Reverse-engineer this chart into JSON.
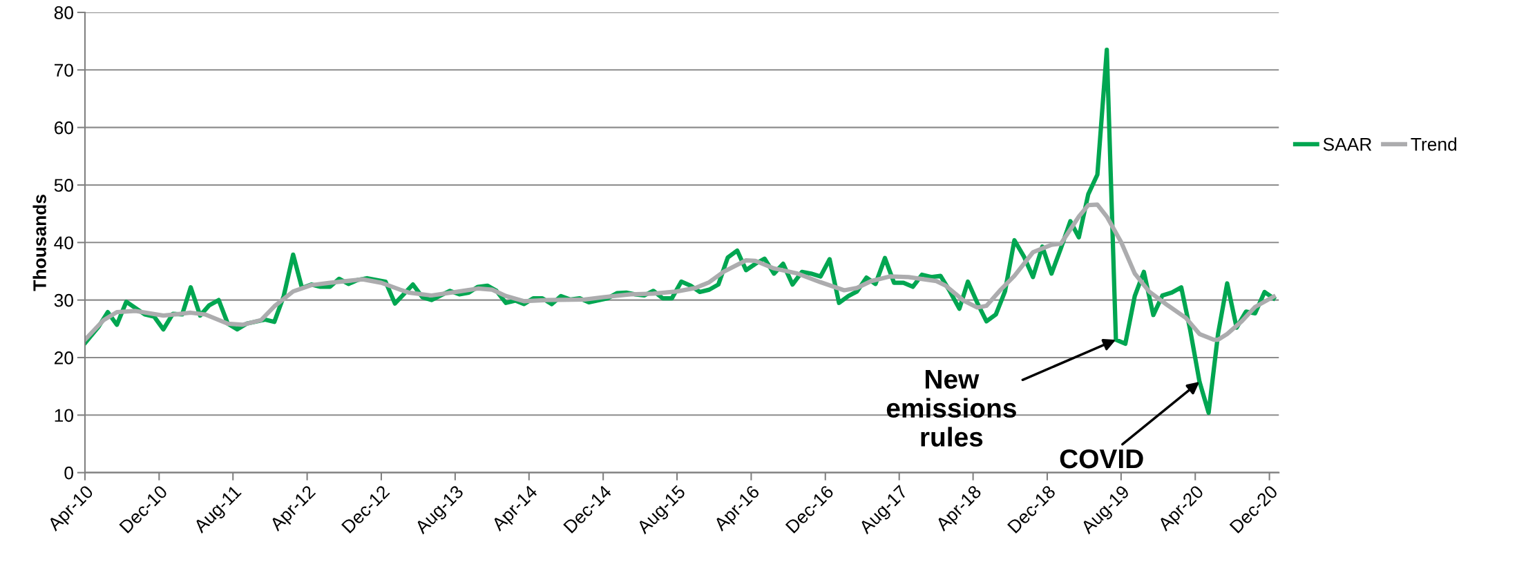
{
  "chart_data": {
    "type": "line",
    "ylabel": "Thousands",
    "xlim": [
      "2010-04-01",
      "2021-01-01"
    ],
    "xticks": [
      {
        "value": "2010-04-01",
        "label": "Apr-10"
      },
      {
        "value": "2010-12-01",
        "label": "Dec-10"
      },
      {
        "value": "2011-08-01",
        "label": "Aug-11"
      },
      {
        "value": "2012-04-01",
        "label": "Apr-12"
      },
      {
        "value": "2012-12-01",
        "label": "Dec-12"
      },
      {
        "value": "2013-08-01",
        "label": "Aug-13"
      },
      {
        "value": "2014-04-01",
        "label": "Apr-14"
      },
      {
        "value": "2014-12-01",
        "label": "Dec-14"
      },
      {
        "value": "2015-08-01",
        "label": "Aug-15"
      },
      {
        "value": "2016-04-01",
        "label": "Apr-16"
      },
      {
        "value": "2016-12-01",
        "label": "Dec-16"
      },
      {
        "value": "2017-08-01",
        "label": "Aug-17"
      },
      {
        "value": "2018-04-01",
        "label": "Apr-18"
      },
      {
        "value": "2018-12-01",
        "label": "Dec-18"
      },
      {
        "value": "2019-08-01",
        "label": "Aug-19"
      },
      {
        "value": "2020-04-01",
        "label": "Apr-20"
      },
      {
        "value": "2020-12-01",
        "label": "Dec-20"
      }
    ],
    "ylim": [
      0,
      80
    ],
    "yticks": [
      0,
      10,
      20,
      30,
      40,
      50,
      60,
      70,
      80
    ],
    "grid": "y",
    "legend": "right",
    "marker": "none",
    "line_style": "solid",
    "series": [
      {
        "name": "SAAR",
        "color": "#00a651",
        "x": [
          "2010-04-01",
          "2010-05-15",
          "2010-06-15",
          "2010-07-15",
          "2010-08-15",
          "2010-10-15",
          "2010-11-15",
          "2010-12-15",
          "2011-01-15",
          "2011-02-15",
          "2011-03-15",
          "2011-04-15",
          "2011-05-15",
          "2011-06-15",
          "2011-07-15",
          "2011-08-15",
          "2011-09-15",
          "2011-11-15",
          "2011-12-15",
          "2012-01-15",
          "2012-02-15",
          "2012-03-15",
          "2012-04-15",
          "2012-05-15",
          "2012-06-15",
          "2012-07-15",
          "2012-08-15",
          "2012-09-15",
          "2012-10-15",
          "2012-12-15",
          "2013-01-15",
          "2013-03-15",
          "2013-04-15",
          "2013-05-15",
          "2013-07-15",
          "2013-08-15",
          "2013-09-15",
          "2013-10-15",
          "2013-11-15",
          "2013-12-15",
          "2014-01-15",
          "2014-02-15",
          "2014-03-15",
          "2014-04-15",
          "2014-05-15",
          "2014-06-15",
          "2014-07-15",
          "2014-08-15",
          "2014-09-15",
          "2014-10-15",
          "2014-12-15",
          "2015-01-15",
          "2015-02-15",
          "2015-03-15",
          "2015-04-15",
          "2015-05-15",
          "2015-06-15",
          "2015-07-15",
          "2015-08-15",
          "2015-09-15",
          "2015-10-15",
          "2015-11-15",
          "2015-12-15",
          "2016-01-15",
          "2016-02-15",
          "2016-03-15",
          "2016-04-15",
          "2016-05-15",
          "2016-06-15",
          "2016-07-15",
          "2016-08-15",
          "2016-09-15",
          "2016-10-15",
          "2016-11-15",
          "2016-12-15",
          "2017-01-15",
          "2017-02-15",
          "2017-03-15",
          "2017-04-15",
          "2017-05-15",
          "2017-06-15",
          "2017-07-15",
          "2017-08-15",
          "2017-09-15",
          "2017-10-15",
          "2017-11-15",
          "2017-12-15",
          "2018-01-15",
          "2018-02-15",
          "2018-03-15",
          "2018-04-15",
          "2018-05-15",
          "2018-06-15",
          "2018-07-15",
          "2018-08-15",
          "2018-09-15",
          "2018-10-15",
          "2018-11-15",
          "2018-12-15",
          "2019-01-15",
          "2019-02-15",
          "2019-03-15",
          "2019-04-15",
          "2019-05-15",
          "2019-06-15",
          "2019-07-15",
          "2019-08-15",
          "2019-09-15",
          "2019-10-15",
          "2019-11-15",
          "2019-12-15",
          "2020-01-15",
          "2020-02-15",
          "2020-03-15",
          "2020-04-15",
          "2020-05-15",
          "2020-06-15",
          "2020-07-15",
          "2020-08-15",
          "2020-09-15",
          "2020-10-15",
          "2020-11-15",
          "2020-12-15"
        ],
        "values": [
          22.5,
          25.3,
          27.9,
          25.7,
          29.7,
          27.5,
          27.1,
          24.9,
          27.6,
          27.5,
          32.2,
          27.3,
          29.1,
          30.0,
          25.9,
          24.9,
          25.9,
          26.6,
          26.2,
          30.7,
          37.9,
          32.1,
          32.7,
          32.3,
          32.3,
          33.7,
          32.8,
          33.5,
          33.8,
          33.2,
          29.4,
          32.7,
          30.5,
          30.0,
          31.6,
          31.0,
          31.3,
          32.3,
          32.5,
          31.6,
          29.5,
          29.9,
          29.3,
          30.3,
          30.3,
          29.3,
          30.7,
          30.1,
          30.3,
          29.6,
          30.3,
          31.2,
          31.3,
          31.0,
          30.8,
          31.6,
          30.3,
          30.3,
          33.2,
          32.5,
          31.4,
          31.8,
          32.7,
          37.4,
          38.6,
          35.2,
          36.3,
          37.2,
          34.6,
          36.3,
          32.7,
          34.9,
          34.6,
          34.1,
          37.1,
          29.5,
          30.7,
          31.5,
          33.9,
          32.8,
          37.3,
          33.0,
          33.0,
          32.3,
          34.4,
          34.0,
          34.2,
          31.5,
          28.5,
          33.2,
          29.5,
          26.3,
          27.5,
          31.5,
          40.4,
          37.6,
          34.0,
          39.3,
          34.6,
          39.0,
          43.7,
          40.9,
          48.4,
          51.8,
          73.5,
          23.1,
          22.4,
          30.7,
          34.9,
          27.4,
          30.8,
          31.3,
          32.2,
          24.9,
          15.8,
          10.4,
          24.1,
          32.9,
          25.2,
          28.0,
          27.7,
          31.4,
          30.3
        ]
      },
      {
        "name": "Trend",
        "color": "#acacae",
        "x": [
          "2010-04-01",
          "2010-06-01",
          "2010-07-15",
          "2010-09-15",
          "2010-12-15",
          "2011-03-15",
          "2011-05-01",
          "2011-07-15",
          "2011-09-01",
          "2011-11-01",
          "2011-12-15",
          "2012-02-15",
          "2012-04-15",
          "2012-06-15",
          "2012-10-01",
          "2012-12-01",
          "2013-02-01",
          "2013-03-01",
          "2013-05-15",
          "2013-08-15",
          "2013-10-15",
          "2013-12-01",
          "2014-01-15",
          "2014-03-15",
          "2014-06-01",
          "2014-10-01",
          "2014-12-01",
          "2015-03-01",
          "2015-05-15",
          "2015-08-01",
          "2015-10-01",
          "2015-11-15",
          "2016-01-01",
          "2016-03-15",
          "2016-04-15",
          "2016-06-15",
          "2016-09-01",
          "2016-11-15",
          "2017-02-01",
          "2017-03-15",
          "2017-05-01",
          "2017-07-01",
          "2017-09-01",
          "2017-12-01",
          "2018-01-01",
          "2018-03-01",
          "2018-04-15",
          "2018-05-15",
          "2018-07-01",
          "2018-08-15",
          "2018-10-15",
          "2018-12-15",
          "2019-01-15",
          "2019-03-15",
          "2019-04-15",
          "2019-05-15",
          "2019-06-15",
          "2019-08-01",
          "2019-09-15",
          "2019-11-01",
          "2020-01-01",
          "2020-03-01",
          "2020-04-15",
          "2020-06-01",
          "2020-06-15",
          "2020-07-15",
          "2020-09-01",
          "2020-10-15",
          "2020-12-15"
        ],
        "values": [
          23.1,
          26.5,
          27.9,
          28.1,
          27.3,
          27.8,
          27.5,
          25.9,
          25.7,
          26.5,
          28.9,
          31.5,
          32.6,
          33.0,
          33.6,
          33.0,
          31.8,
          31.3,
          30.8,
          31.5,
          32.0,
          31.8,
          30.7,
          29.8,
          30.0,
          30.1,
          30.5,
          31.0,
          31.1,
          31.5,
          32.1,
          33.1,
          34.9,
          36.9,
          36.8,
          35.5,
          34.6,
          33.1,
          31.7,
          32.1,
          33.3,
          34.1,
          34.0,
          33.3,
          32.5,
          29.9,
          28.7,
          29.0,
          31.8,
          34.2,
          38.3,
          39.6,
          39.8,
          44.5,
          46.5,
          46.6,
          44.5,
          40.1,
          34.6,
          31.5,
          29.1,
          26.9,
          24.1,
          23.1,
          23.1,
          24.1,
          26.3,
          28.8,
          30.6
        ]
      }
    ],
    "annotations": [
      {
        "text": "New\nemissions\nrules",
        "x": "2019-07-15",
        "y": 23.1
      },
      {
        "text": "COVID",
        "x": "2020-04-15",
        "y": 15.8
      }
    ]
  }
}
